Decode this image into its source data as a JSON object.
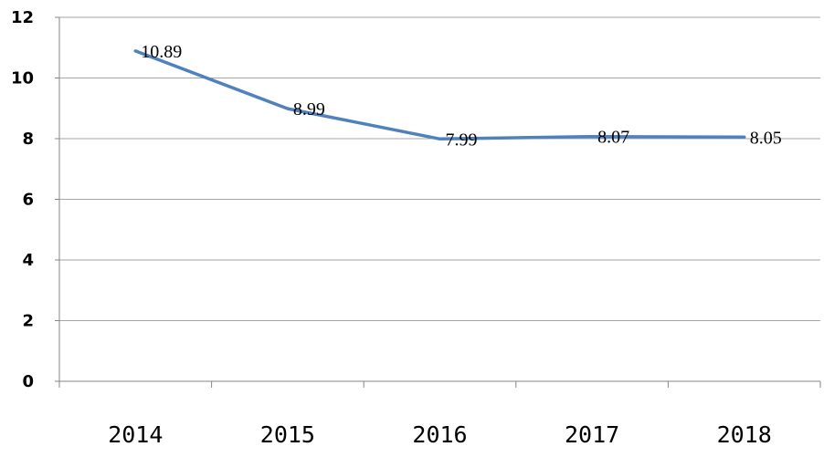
{
  "chart_data": {
    "type": "line",
    "title": "",
    "xlabel": "",
    "ylabel": "",
    "categories": [
      "2014",
      "2015",
      "2016",
      "2017",
      "2018"
    ],
    "series": [
      {
        "values": [
          10.89,
          8.99,
          7.99,
          8.07,
          8.05
        ],
        "data_labels": [
          "10.89",
          "8.99",
          "7.99",
          "8.07",
          "8.05"
        ],
        "color": "#4f81bd"
      }
    ],
    "ylim": [
      0,
      12
    ],
    "y_ticks": [
      0,
      2,
      4,
      6,
      8,
      10,
      12
    ],
    "y_tick_labels": [
      "0",
      "2",
      "4",
      "6",
      "8",
      "10",
      "12"
    ],
    "grid": true,
    "legend": "none"
  }
}
